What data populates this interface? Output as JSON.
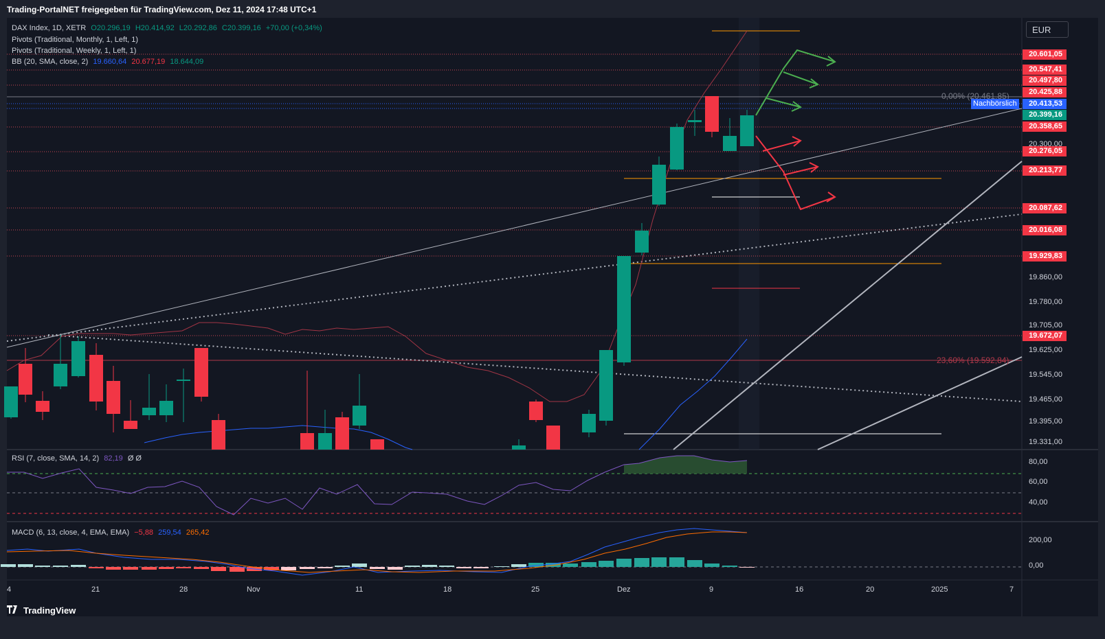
{
  "header": {
    "share_text": "Trading-PortalNET freigegeben für TradingView.com, Dez 11, 2024 17:48 UTC+1"
  },
  "legend": {
    "symbol": "DAX Index, 1D, XETR",
    "ohlc": {
      "o": "O20.296,19",
      "h": "H20.414,92",
      "l": "L20.292,86",
      "c": "C20.399,16",
      "chg": "+70,00 (+0,34%)"
    },
    "pivots_monthly": "Pivots (Traditional, Monthly, 1, Left, 1)",
    "pivots_weekly": "Pivots (Traditional, Weekly, 1, Left, 1)",
    "bb_label": "BB (20, SMA, close, 2)",
    "bb_basis": "19.660,64",
    "bb_upper": "20.677,19",
    "bb_lower": "18.644,09"
  },
  "currency": "EUR",
  "fib": {
    "upper": "0,00% (20.461,85)",
    "lower": "23,60% (19.592,84)"
  },
  "after_hours_label": "Nachbörslich",
  "price_labels": [
    {
      "text": "20.601,05",
      "color": "#f23645"
    },
    {
      "text": "20.547,41",
      "color": "#f23645"
    },
    {
      "text": "20.497,80",
      "color": "#f23645"
    },
    {
      "text": "20.425,88",
      "color": "#f23645"
    },
    {
      "text": "20.413,53",
      "color": "#2962ff"
    },
    {
      "text": "20.399,16",
      "color": "#089981"
    },
    {
      "text": "20.358,65",
      "color": "#f23645"
    },
    {
      "text": "20.276,05",
      "color": "#f23645"
    },
    {
      "text": "20.213,77",
      "color": "#f23645"
    },
    {
      "text": "20.087,62",
      "color": "#f23645"
    },
    {
      "text": "20.016,08",
      "color": "#f23645"
    },
    {
      "text": "19.929,83",
      "color": "#f23645"
    },
    {
      "text": "19.672,07",
      "color": "#f23645"
    }
  ],
  "price_axis": [
    "20.300,00",
    "19.860,00",
    "19.780,00",
    "19.705,00",
    "19.625,00",
    "19.545,00",
    "19.465,00",
    "19.395,00",
    "19.331,00"
  ],
  "rsi": {
    "label": "RSI (7, close, SMA, 14, 2)",
    "value": "82,19",
    "extra": "Ø Ø",
    "axis": [
      "80,00",
      "60,00",
      "40,00"
    ]
  },
  "macd": {
    "label": "MACD (6, 13, close, 4, EMA, EMA)",
    "hist": "−5,88",
    "macd": "259,54",
    "signal": "265,42",
    "axis": [
      "200,00",
      "0,00"
    ]
  },
  "x_axis": [
    "4",
    "21",
    "28",
    "Nov",
    "11",
    "18",
    "25",
    "Dez",
    "9",
    "16",
    "20",
    "2025",
    "7"
  ],
  "footer": {
    "brand": "TradingView"
  },
  "colors": {
    "up": "#089981",
    "down": "#f23645",
    "bg": "#131722",
    "pivot": "#f7525f",
    "orange": "#ff9800"
  }
}
